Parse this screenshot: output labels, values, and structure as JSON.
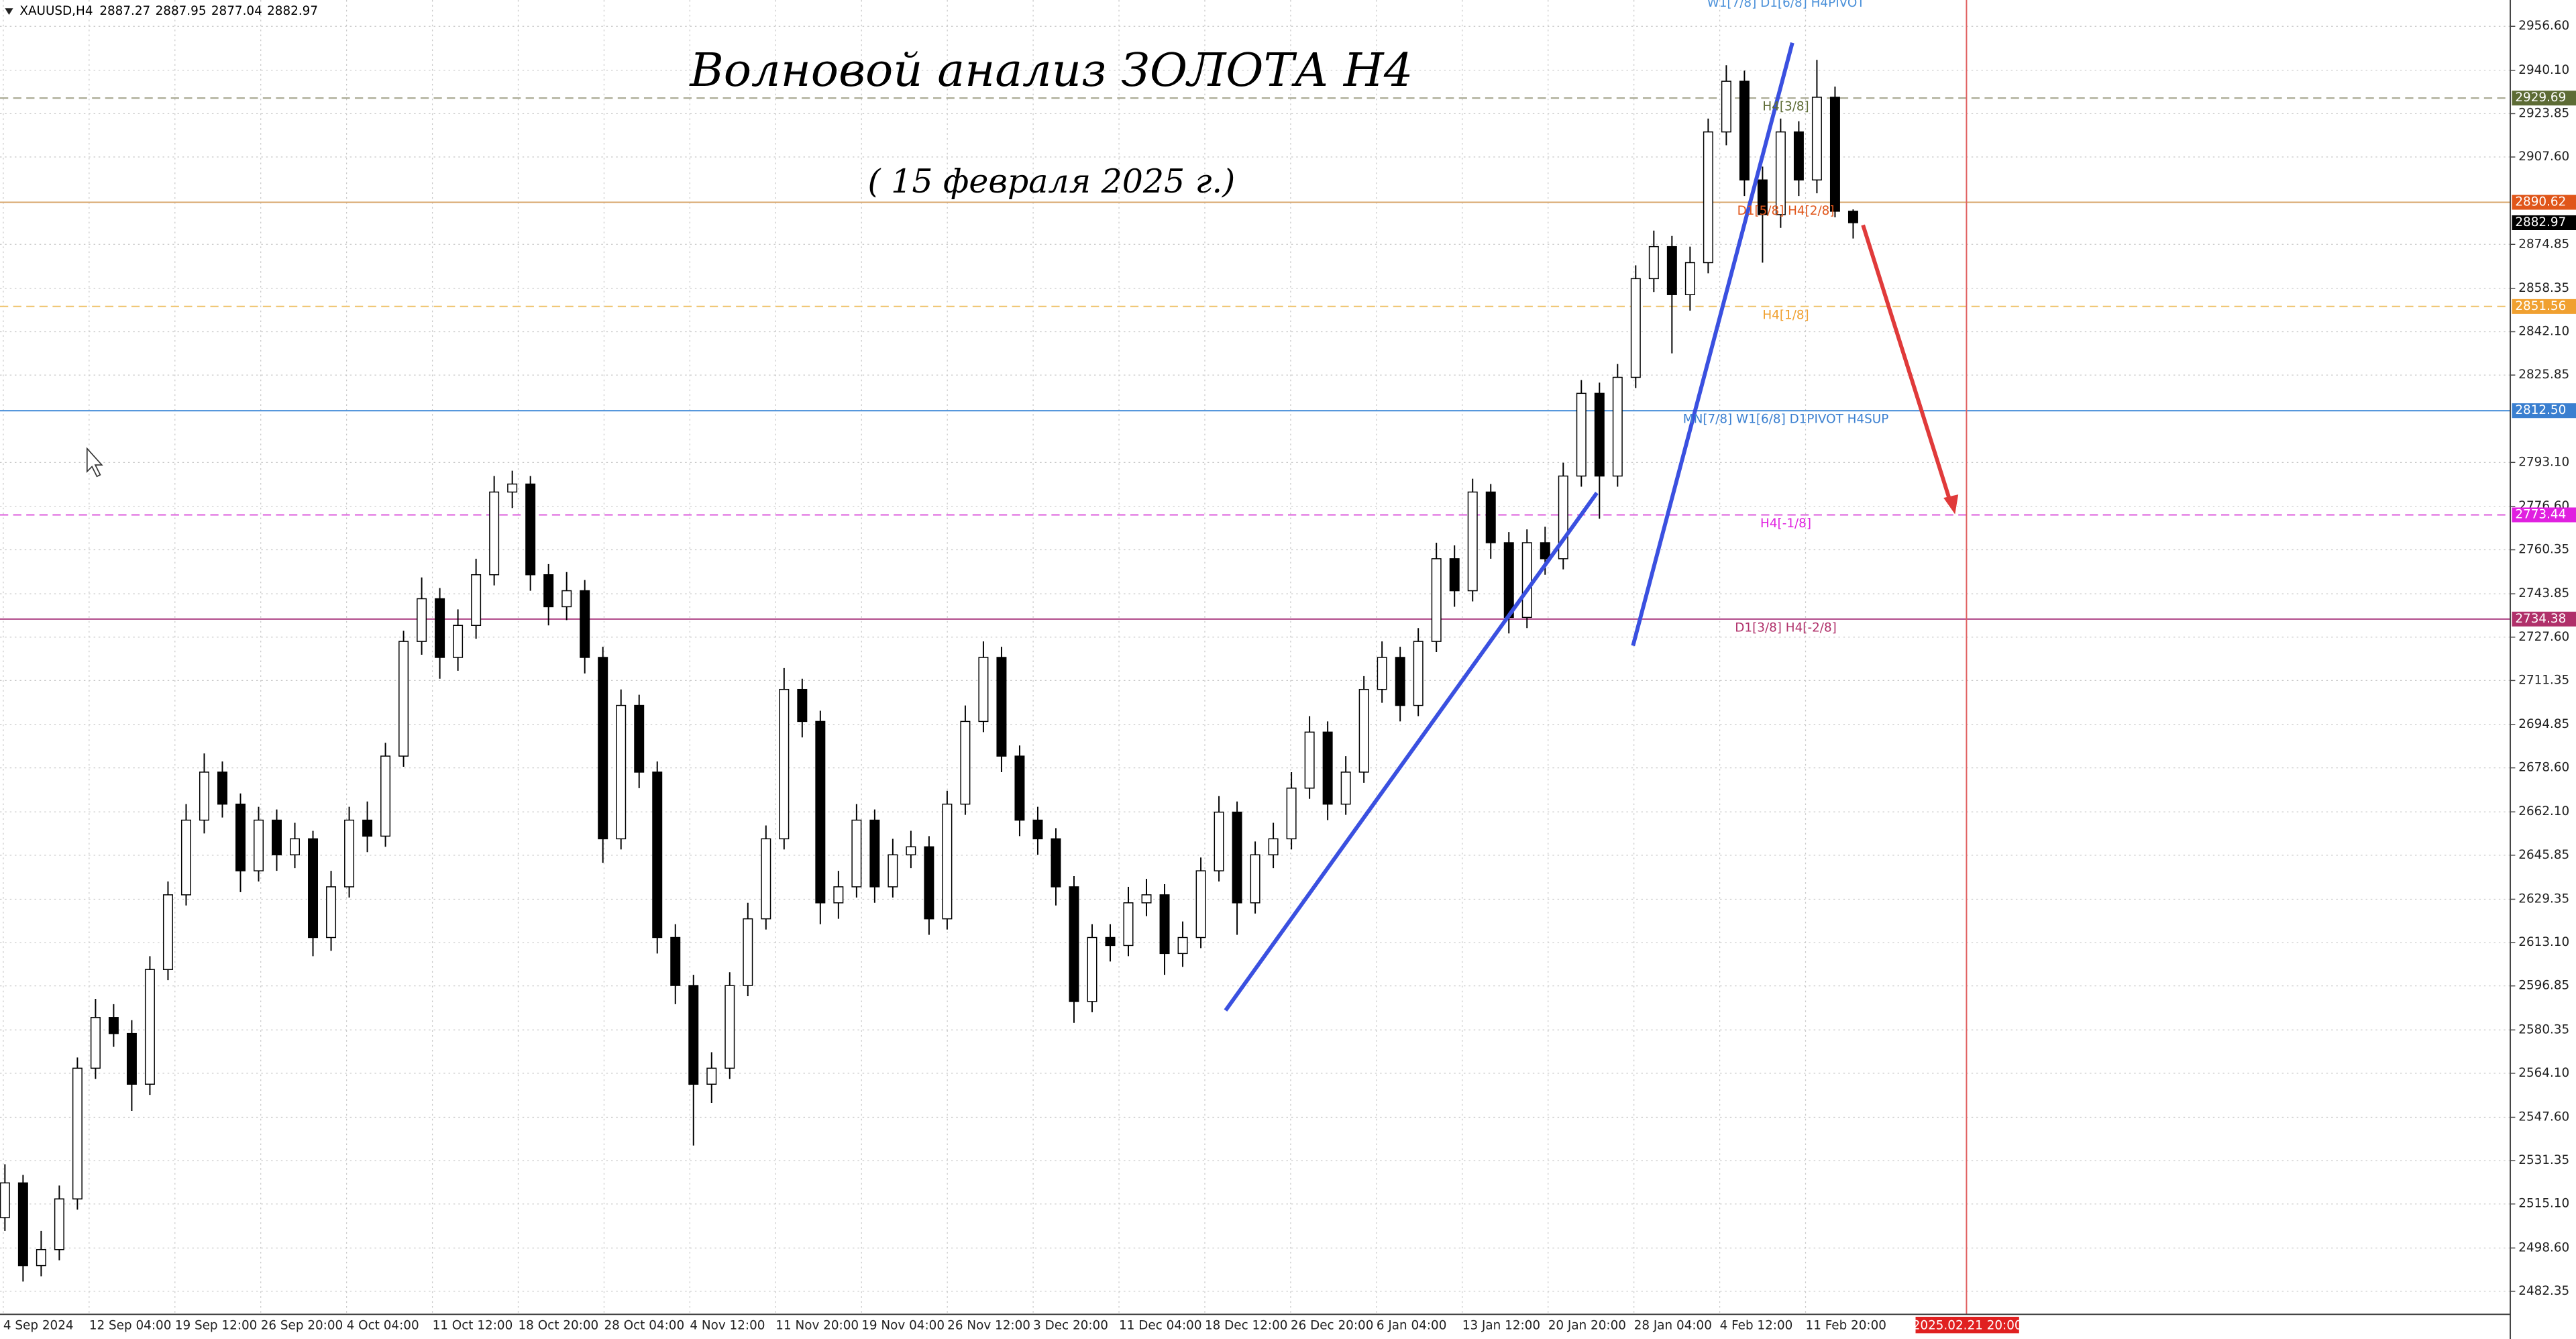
{
  "chart_data": {
    "type": "candlestick",
    "title": "Волновой анализ ЗОЛОТА H4",
    "subtitle": "( 15 февраля 2025 г.)",
    "symbol": "XAUUSD,H4",
    "annotations": [
      "W1[7/8] D1[6/8] H4PIVOT"
    ],
    "cursor_label": "2025.02.21 20:00",
    "x_labels": [
      "4 Sep 2024",
      "12 Sep 04:00",
      "19 Sep 12:00",
      "26 Sep 20:00",
      "4 Oct 04:00",
      "11 Oct 12:00",
      "18 Oct 20:00",
      "28 Oct 04:00",
      "4 Nov 12:00",
      "11 Nov 20:00",
      "19 Nov 04:00",
      "26 Nov 12:00",
      "3 Dec 20:00",
      "11 Dec 04:00",
      "18 Dec 12:00",
      "26 Dec 20:00",
      "6 Jan 04:00",
      "13 Jan 12:00",
      "20 Jan 20:00",
      "28 Jan 04:00",
      "4 Feb 12:00",
      "11 Feb 20:00"
    ],
    "bull_color": "#ffffff",
    "bear_color": "#000000",
    "ohlc": [
      [
        2510,
        2530,
        2505,
        2523
      ],
      [
        2523,
        2526,
        2486,
        2492
      ],
      [
        2492,
        2505,
        2488,
        2498
      ],
      [
        2498,
        2522,
        2494,
        2517
      ],
      [
        2517,
        2570,
        2513,
        2566
      ],
      [
        2566,
        2592,
        2562,
        2585
      ],
      [
        2585,
        2590,
        2574,
        2579
      ],
      [
        2579,
        2584,
        2550,
        2560
      ],
      [
        2560,
        2608,
        2556,
        2603
      ],
      [
        2603,
        2636,
        2599,
        2631
      ],
      [
        2631,
        2665,
        2627,
        2659
      ],
      [
        2659,
        2684,
        2654,
        2677
      ],
      [
        2677,
        2681,
        2660,
        2665
      ],
      [
        2665,
        2669,
        2632,
        2640
      ],
      [
        2640,
        2664,
        2636,
        2659
      ],
      [
        2659,
        2663,
        2640,
        2646
      ],
      [
        2646,
        2658,
        2641,
        2652
      ],
      [
        2652,
        2655,
        2608,
        2615
      ],
      [
        2615,
        2640,
        2610,
        2634
      ],
      [
        2634,
        2664,
        2630,
        2659
      ],
      [
        2659,
        2666,
        2647,
        2653
      ],
      [
        2653,
        2688,
        2649,
        2683
      ],
      [
        2683,
        2730,
        2679,
        2726
      ],
      [
        2726,
        2750,
        2721,
        2742
      ],
      [
        2742,
        2746,
        2712,
        2720
      ],
      [
        2720,
        2738,
        2715,
        2732
      ],
      [
        2732,
        2757,
        2727,
        2751
      ],
      [
        2751,
        2788,
        2747,
        2782
      ],
      [
        2782,
        2790,
        2776,
        2785
      ],
      [
        2785,
        2788,
        2745,
        2751
      ],
      [
        2751,
        2755,
        2732,
        2739
      ],
      [
        2739,
        2752,
        2734,
        2745
      ],
      [
        2745,
        2749,
        2714,
        2720
      ],
      [
        2720,
        2724,
        2643,
        2652
      ],
      [
        2652,
        2708,
        2648,
        2702
      ],
      [
        2702,
        2706,
        2671,
        2677
      ],
      [
        2677,
        2681,
        2609,
        2615
      ],
      [
        2615,
        2620,
        2590,
        2597
      ],
      [
        2597,
        2601,
        2537,
        2560
      ],
      [
        2560,
        2572,
        2553,
        2566
      ],
      [
        2566,
        2602,
        2562,
        2597
      ],
      [
        2597,
        2628,
        2593,
        2622
      ],
      [
        2622,
        2657,
        2618,
        2652
      ],
      [
        2652,
        2716,
        2648,
        2708
      ],
      [
        2708,
        2712,
        2690,
        2696
      ],
      [
        2696,
        2700,
        2620,
        2628
      ],
      [
        2628,
        2640,
        2622,
        2634
      ],
      [
        2634,
        2665,
        2630,
        2659
      ],
      [
        2659,
        2663,
        2628,
        2634
      ],
      [
        2634,
        2652,
        2630,
        2646
      ],
      [
        2646,
        2655,
        2641,
        2649
      ],
      [
        2649,
        2653,
        2616,
        2622
      ],
      [
        2622,
        2670,
        2618,
        2665
      ],
      [
        2665,
        2702,
        2661,
        2696
      ],
      [
        2696,
        2726,
        2692,
        2720
      ],
      [
        2720,
        2724,
        2677,
        2683
      ],
      [
        2683,
        2687,
        2653,
        2659
      ],
      [
        2659,
        2664,
        2646,
        2652
      ],
      [
        2652,
        2656,
        2627,
        2634
      ],
      [
        2634,
        2638,
        2583,
        2591
      ],
      [
        2591,
        2620,
        2587,
        2615
      ],
      [
        2615,
        2620,
        2606,
        2612
      ],
      [
        2612,
        2634,
        2608,
        2628
      ],
      [
        2628,
        2637,
        2623,
        2631
      ],
      [
        2631,
        2635,
        2601,
        2609
      ],
      [
        2609,
        2621,
        2604,
        2615
      ],
      [
        2615,
        2645,
        2611,
        2640
      ],
      [
        2640,
        2668,
        2636,
        2662
      ],
      [
        2662,
        2666,
        2616,
        2628
      ],
      [
        2628,
        2651,
        2624,
        2646
      ],
      [
        2646,
        2658,
        2641,
        2652
      ],
      [
        2652,
        2677,
        2648,
        2671
      ],
      [
        2671,
        2698,
        2667,
        2692
      ],
      [
        2692,
        2696,
        2659,
        2665
      ],
      [
        2665,
        2683,
        2661,
        2677
      ],
      [
        2677,
        2713,
        2673,
        2708
      ],
      [
        2708,
        2726,
        2703,
        2720
      ],
      [
        2720,
        2724,
        2696,
        2702
      ],
      [
        2702,
        2731,
        2698,
        2726
      ],
      [
        2726,
        2763,
        2722,
        2757
      ],
      [
        2757,
        2762,
        2739,
        2745
      ],
      [
        2745,
        2787,
        2741,
        2782
      ],
      [
        2782,
        2785,
        2757,
        2763
      ],
      [
        2763,
        2767,
        2729,
        2735
      ],
      [
        2735,
        2768,
        2731,
        2763
      ],
      [
        2763,
        2769,
        2751,
        2757
      ],
      [
        2757,
        2793,
        2753,
        2788
      ],
      [
        2788,
        2824,
        2784,
        2819
      ],
      [
        2819,
        2823,
        2772,
        2788
      ],
      [
        2788,
        2830,
        2784,
        2825
      ],
      [
        2825,
        2867,
        2821,
        2862
      ],
      [
        2862,
        2880,
        2857,
        2874
      ],
      [
        2874,
        2878,
        2834,
        2856
      ],
      [
        2856,
        2874,
        2850,
        2868
      ],
      [
        2868,
        2922,
        2864,
        2917
      ],
      [
        2917,
        2942,
        2912,
        2936
      ],
      [
        2936,
        2940,
        2893,
        2899
      ],
      [
        2899,
        2904,
        2868,
        2886
      ],
      [
        2886,
        2922,
        2881,
        2917
      ],
      [
        2917,
        2921,
        2893,
        2899
      ],
      [
        2899,
        2944,
        2894,
        2930
      ],
      [
        2930,
        2934,
        2885,
        2887.27
      ],
      [
        2887.27,
        2887.95,
        2877.04,
        2882.97
      ]
    ],
    "ylim": [
      2473.73,
      2966.45
    ],
    "yticks": [
      {
        "value": 2956.6,
        "label": "2956.60"
      },
      {
        "value": 2940.1,
        "label": "2940.10"
      },
      {
        "value": 2923.85,
        "label": "2923.85"
      },
      {
        "value": 2907.6,
        "label": "2907.60"
      },
      {
        "value": 2874.85,
        "label": "2874.85"
      },
      {
        "value": 2858.35,
        "label": "2858.35"
      },
      {
        "value": 2842.1,
        "label": "2842.10"
      },
      {
        "value": 2825.85,
        "label": "2825.85"
      },
      {
        "value": 2793.1,
        "label": "2793.10"
      },
      {
        "value": 2776.6,
        "label": "2776.60"
      },
      {
        "value": 2760.35,
        "label": "2760.35"
      },
      {
        "value": 2743.85,
        "label": "2743.85"
      },
      {
        "value": 2727.6,
        "label": "2727.60"
      },
      {
        "value": 2711.35,
        "label": "2711.35"
      },
      {
        "value": 2694.85,
        "label": "2694.85"
      },
      {
        "value": 2678.6,
        "label": "2678.60"
      },
      {
        "value": 2662.1,
        "label": "2662.10"
      },
      {
        "value": 2645.85,
        "label": "2645.85"
      },
      {
        "value": 2629.35,
        "label": "2629.35"
      },
      {
        "value": 2613.1,
        "label": "2613.10"
      },
      {
        "value": 2596.85,
        "label": "2596.85"
      },
      {
        "value": 2580.35,
        "label": "2580.35"
      },
      {
        "value": 2564.1,
        "label": "2564.10"
      },
      {
        "value": 2547.6,
        "label": "2547.60"
      },
      {
        "value": 2531.35,
        "label": "2531.35"
      },
      {
        "value": 2515.1,
        "label": "2515.10"
      },
      {
        "value": 2498.6,
        "label": "2498.60"
      },
      {
        "value": 2482.35,
        "label": "2482.35"
      }
    ],
    "levels": [
      {
        "value": 2929.69,
        "tag": "H4[3/8]",
        "color": "#a8a890",
        "box": "#5d6b35",
        "dash": true
      },
      {
        "value": 2890.62,
        "tag": "D1[5/8] H4[2/8]",
        "color": "#d9a870",
        "box": "#e0561a",
        "dash": false
      },
      {
        "value": 2851.56,
        "tag": "H4[1/8]",
        "color": "#f0c878",
        "box": "#f0a030",
        "dash": true
      },
      {
        "value": 2812.5,
        "label": "2812.50",
        "tag": "MN[7/8] W1[6/8] D1PIVOT H4SUP",
        "color": "#4a90d9",
        "box": "#3a7fd0",
        "dash": false
      },
      {
        "value": 2773.44,
        "tag": "H4[-1/8]",
        "color": "#e070e0",
        "box": "#e020e0",
        "dash": true
      },
      {
        "value": 2734.38,
        "tag": "D1[3/8] H4[-2/8]",
        "color": "#b04a8a",
        "box": "#b0306a",
        "dash": false
      }
    ],
    "grid": true
  }
}
